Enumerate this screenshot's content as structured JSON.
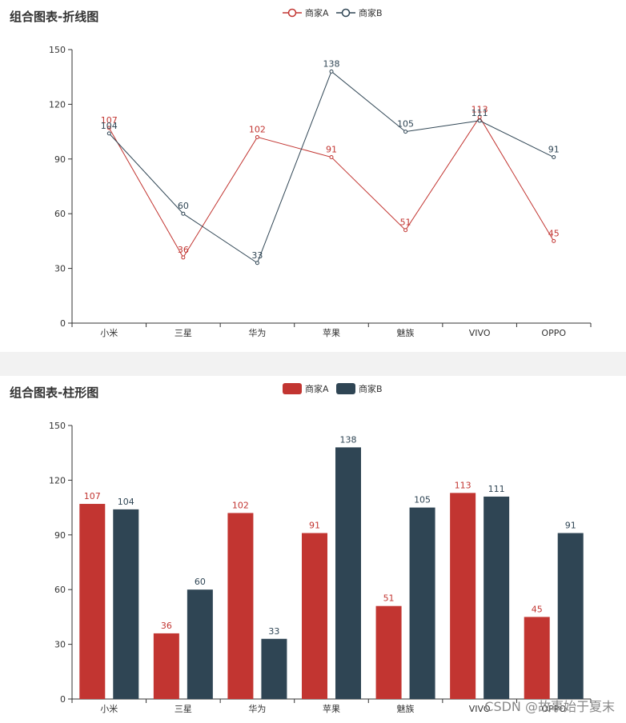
{
  "colors": {
    "series_a": "#c23531",
    "series_b": "#2f4554",
    "axis": "#333333",
    "label": "#333333"
  },
  "watermark": "CSDN @故事始于夏末",
  "chart_data": [
    {
      "type": "line",
      "title": "组合图表-折线图",
      "categories": [
        "小米",
        "三星",
        "华为",
        "苹果",
        "魅族",
        "VIVO",
        "OPPO"
      ],
      "series": [
        {
          "name": "商家A",
          "values": [
            107,
            36,
            102,
            91,
            51,
            113,
            45
          ],
          "color": "#c23531"
        },
        {
          "name": "商家B",
          "values": [
            104,
            60,
            33,
            138,
            105,
            111,
            91
          ],
          "color": "#2f4554"
        }
      ],
      "ylim": [
        0,
        150
      ],
      "yticks": [
        0,
        30,
        60,
        90,
        120,
        150
      ],
      "legend": "top-center",
      "grid": false,
      "data_labels": true
    },
    {
      "type": "bar",
      "title": "组合图表-柱形图",
      "categories": [
        "小米",
        "三星",
        "华为",
        "苹果",
        "魅族",
        "VIVO",
        "OPPO"
      ],
      "series": [
        {
          "name": "商家A",
          "values": [
            107,
            36,
            102,
            91,
            51,
            113,
            45
          ],
          "color": "#c23531"
        },
        {
          "name": "商家B",
          "values": [
            104,
            60,
            33,
            138,
            105,
            111,
            91
          ],
          "color": "#2f4554"
        }
      ],
      "ylim": [
        0,
        150
      ],
      "yticks": [
        0,
        30,
        60,
        90,
        120,
        150
      ],
      "legend": "top-center",
      "grid": false,
      "data_labels": true
    }
  ]
}
